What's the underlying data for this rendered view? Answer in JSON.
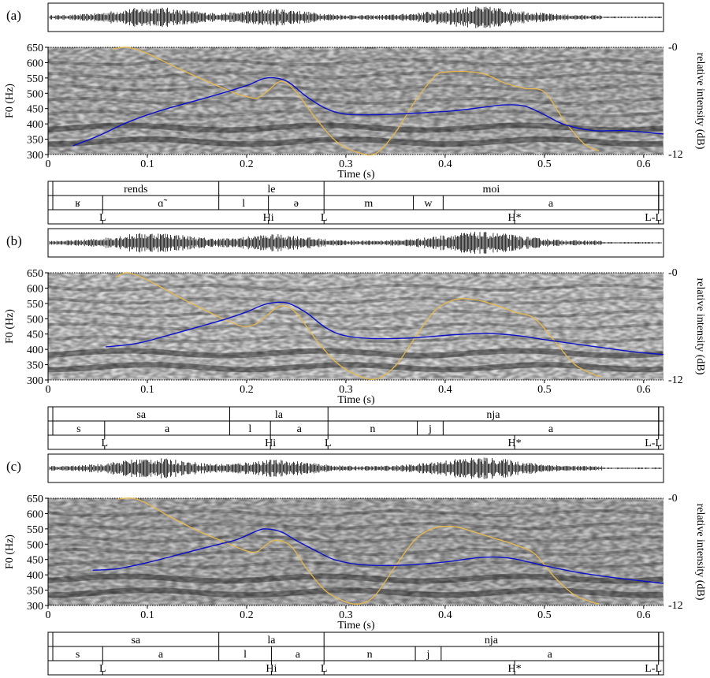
{
  "colors": {
    "f0_curve": "#0a10c8",
    "intensity_curve": "#e8b84a",
    "frame": "#000000"
  },
  "chart_data": [
    {
      "type": "line",
      "panel_label": "(a)",
      "xlabel": "Time (s)",
      "ylabel": "F0 (Hz)",
      "y2label": "relative intensity (dB)",
      "xlim": [
        0,
        0.62
      ],
      "ylim": [
        300,
        650
      ],
      "y2lim": [
        -12,
        0
      ],
      "xticks": [
        "0",
        "0.1",
        "0.2",
        "0.3",
        "0.4",
        "0.5",
        "0.6"
      ],
      "yticks": [
        "300",
        "350",
        "400",
        "450",
        "500",
        "550",
        "600",
        "650"
      ],
      "y2ticks": [
        "-0",
        "-12"
      ],
      "series": [
        {
          "name": "",
          "role": "f0",
          "x": [
            0.025,
            0.05,
            0.08,
            0.11,
            0.14,
            0.17,
            0.2,
            0.22,
            0.24,
            0.26,
            0.28,
            0.3,
            0.33,
            0.37,
            0.41,
            0.44,
            0.46,
            0.48,
            0.5,
            0.52,
            0.55,
            0.58,
            0.62
          ],
          "y": [
            328,
            360,
            405,
            440,
            468,
            495,
            525,
            550,
            540,
            490,
            450,
            432,
            430,
            435,
            443,
            455,
            462,
            458,
            430,
            398,
            378,
            378,
            367
          ]
        },
        {
          "name": "",
          "role": "intensity",
          "x": [
            0.065,
            0.08,
            0.1,
            0.13,
            0.16,
            0.19,
            0.2,
            0.21,
            0.22,
            0.235,
            0.25,
            0.27,
            0.29,
            0.31,
            0.33,
            0.35,
            0.37,
            0.39,
            0.4,
            0.42,
            0.44,
            0.46,
            0.48,
            0.5,
            0.52,
            0.54,
            0.555
          ],
          "y": [
            -0.2,
            0,
            -0.7,
            -2.3,
            -3.8,
            -5.2,
            -5.5,
            -5.7,
            -5.0,
            -3.8,
            -5.0,
            -8.0,
            -10.5,
            -11.7,
            -11.9,
            -9.5,
            -6.0,
            -3.2,
            -2.8,
            -2.7,
            -3.0,
            -4.0,
            -4.6,
            -5.0,
            -8.2,
            -10.8,
            -11.6
          ]
        }
      ],
      "tiers": {
        "words": [
          {
            "label": "rends",
            "start": 0.0,
            "end": 0.172
          },
          {
            "label": "le",
            "start": 0.172,
            "end": 0.278
          },
          {
            "label": "moi",
            "start": 0.278,
            "end": 0.615
          }
        ],
        "segments": [
          {
            "label": "ʁ",
            "start": 0.0,
            "end": 0.055
          },
          {
            "label": "ɑ̃",
            "start": 0.055,
            "end": 0.172
          },
          {
            "label": "l",
            "start": 0.172,
            "end": 0.222
          },
          {
            "label": "ə",
            "start": 0.222,
            "end": 0.278
          },
          {
            "label": "m",
            "start": 0.278,
            "end": 0.368
          },
          {
            "label": "w",
            "start": 0.368,
            "end": 0.398
          },
          {
            "label": "a",
            "start": 0.398,
            "end": 0.615
          }
        ],
        "tones": [
          {
            "label": "L",
            "time": 0.055
          },
          {
            "label": "Hi",
            "time": 0.222
          },
          {
            "label": "L",
            "time": 0.278
          },
          {
            "label": "H*",
            "time": 0.47
          },
          {
            "label": "L-L",
            "time": 0.615
          }
        ]
      }
    },
    {
      "type": "line",
      "panel_label": "(b)",
      "xlabel": "Time (s)",
      "ylabel": "F0 (Hz)",
      "y2label": "relative intensity (dB)",
      "xlim": [
        0,
        0.62
      ],
      "ylim": [
        300,
        650
      ],
      "y2lim": [
        -12,
        0
      ],
      "xticks": [
        "0",
        "0.1",
        "0.2",
        "0.3",
        "0.4",
        "0.5",
        "0.6"
      ],
      "yticks": [
        "300",
        "350",
        "400",
        "450",
        "500",
        "550",
        "600",
        "650"
      ],
      "y2ticks": [
        "-0",
        "-12"
      ],
      "series": [
        {
          "name": "",
          "role": "f0",
          "x": [
            0.058,
            0.09,
            0.12,
            0.15,
            0.18,
            0.2,
            0.22,
            0.24,
            0.26,
            0.28,
            0.3,
            0.33,
            0.37,
            0.41,
            0.44,
            0.47,
            0.5,
            0.53,
            0.56,
            0.59,
            0.62
          ],
          "y": [
            408,
            420,
            445,
            472,
            500,
            522,
            548,
            552,
            520,
            470,
            444,
            435,
            438,
            448,
            452,
            446,
            432,
            418,
            405,
            392,
            383
          ]
        },
        {
          "name": "",
          "role": "intensity",
          "x": [
            0.068,
            0.08,
            0.1,
            0.13,
            0.16,
            0.19,
            0.2,
            0.21,
            0.22,
            0.235,
            0.25,
            0.27,
            0.29,
            0.31,
            0.33,
            0.35,
            0.37,
            0.39,
            0.41,
            0.43,
            0.45,
            0.47,
            0.49,
            0.51,
            0.53,
            0.55,
            0.557
          ],
          "y": [
            -0.5,
            0,
            -0.8,
            -2.6,
            -4.3,
            -5.8,
            -6.0,
            -5.7,
            -4.8,
            -3.7,
            -4.5,
            -7.5,
            -10.0,
            -11.4,
            -11.9,
            -10.4,
            -7.2,
            -4.2,
            -3.0,
            -3.0,
            -3.6,
            -4.4,
            -5.1,
            -7.6,
            -10.2,
            -11.4,
            -11.6
          ]
        }
      ],
      "tiers": {
        "words": [
          {
            "label": "sa",
            "start": 0.0,
            "end": 0.183
          },
          {
            "label": "la",
            "start": 0.183,
            "end": 0.282
          },
          {
            "label": "nja",
            "start": 0.282,
            "end": 0.615
          }
        ],
        "segments": [
          {
            "label": "s",
            "start": 0.0,
            "end": 0.057
          },
          {
            "label": "a",
            "start": 0.057,
            "end": 0.183
          },
          {
            "label": "l",
            "start": 0.183,
            "end": 0.224
          },
          {
            "label": "a",
            "start": 0.224,
            "end": 0.282
          },
          {
            "label": "n",
            "start": 0.282,
            "end": 0.372
          },
          {
            "label": "j",
            "start": 0.372,
            "end": 0.398
          },
          {
            "label": "a",
            "start": 0.398,
            "end": 0.615
          }
        ],
        "tones": [
          {
            "label": "L",
            "time": 0.057
          },
          {
            "label": "Hi",
            "time": 0.224
          },
          {
            "label": "L",
            "time": 0.282
          },
          {
            "label": "H*",
            "time": 0.47
          },
          {
            "label": "L-L",
            "time": 0.615
          }
        ]
      }
    },
    {
      "type": "line",
      "panel_label": "(c)",
      "xlabel": "Time (s)",
      "ylabel": "F0 (Hz)",
      "y2label": "relative intensity (dB)",
      "xlim": [
        0,
        0.62
      ],
      "ylim": [
        300,
        650
      ],
      "y2lim": [
        -12,
        0
      ],
      "xticks": [
        "0",
        "0.1",
        "0.2",
        "0.3",
        "0.4",
        "0.5",
        "0.6"
      ],
      "yticks": [
        "300",
        "350",
        "400",
        "450",
        "500",
        "550",
        "600",
        "650"
      ],
      "y2ticks": [
        "-0",
        "-12"
      ],
      "series": [
        {
          "name": "",
          "role": "f0",
          "x": [
            0.045,
            0.07,
            0.1,
            0.13,
            0.16,
            0.19,
            0.21,
            0.22,
            0.235,
            0.25,
            0.27,
            0.29,
            0.32,
            0.36,
            0.4,
            0.43,
            0.45,
            0.47,
            0.5,
            0.53,
            0.56,
            0.59,
            0.62
          ],
          "y": [
            415,
            420,
            440,
            465,
            490,
            515,
            543,
            550,
            540,
            512,
            478,
            448,
            432,
            432,
            442,
            455,
            458,
            452,
            430,
            410,
            395,
            383,
            372
          ]
        },
        {
          "name": "",
          "role": "intensity",
          "x": [
            0.07,
            0.085,
            0.1,
            0.12,
            0.15,
            0.18,
            0.2,
            0.21,
            0.22,
            0.23,
            0.245,
            0.26,
            0.28,
            0.3,
            0.315,
            0.33,
            0.35,
            0.37,
            0.39,
            0.41,
            0.43,
            0.45,
            0.47,
            0.49,
            0.51,
            0.53,
            0.55,
            0.555
          ],
          "y": [
            -0.1,
            0,
            -0.6,
            -1.9,
            -3.6,
            -5.0,
            -5.9,
            -6.0,
            -5.2,
            -4.7,
            -5.4,
            -7.8,
            -10.4,
            -11.6,
            -11.8,
            -10.8,
            -7.6,
            -4.6,
            -3.3,
            -3.2,
            -3.8,
            -4.5,
            -5.2,
            -6.2,
            -8.8,
            -10.8,
            -11.7,
            -11.8
          ]
        }
      ],
      "tiers": {
        "words": [
          {
            "label": "sa",
            "start": 0.0,
            "end": 0.172
          },
          {
            "label": "la",
            "start": 0.172,
            "end": 0.278
          },
          {
            "label": "nja",
            "start": 0.278,
            "end": 0.615
          }
        ],
        "segments": [
          {
            "label": "s",
            "start": 0.0,
            "end": 0.055
          },
          {
            "label": "a",
            "start": 0.055,
            "end": 0.172
          },
          {
            "label": "l",
            "start": 0.172,
            "end": 0.225
          },
          {
            "label": "a",
            "start": 0.225,
            "end": 0.278
          },
          {
            "label": "n",
            "start": 0.278,
            "end": 0.37
          },
          {
            "label": "j",
            "start": 0.37,
            "end": 0.396
          },
          {
            "label": "a",
            "start": 0.396,
            "end": 0.615
          }
        ],
        "tones": [
          {
            "label": "L",
            "time": 0.055
          },
          {
            "label": "Hi",
            "time": 0.225
          },
          {
            "label": "L",
            "time": 0.278
          },
          {
            "label": "H*",
            "time": 0.47
          },
          {
            "label": "L-L",
            "time": 0.615
          }
        ]
      }
    }
  ]
}
